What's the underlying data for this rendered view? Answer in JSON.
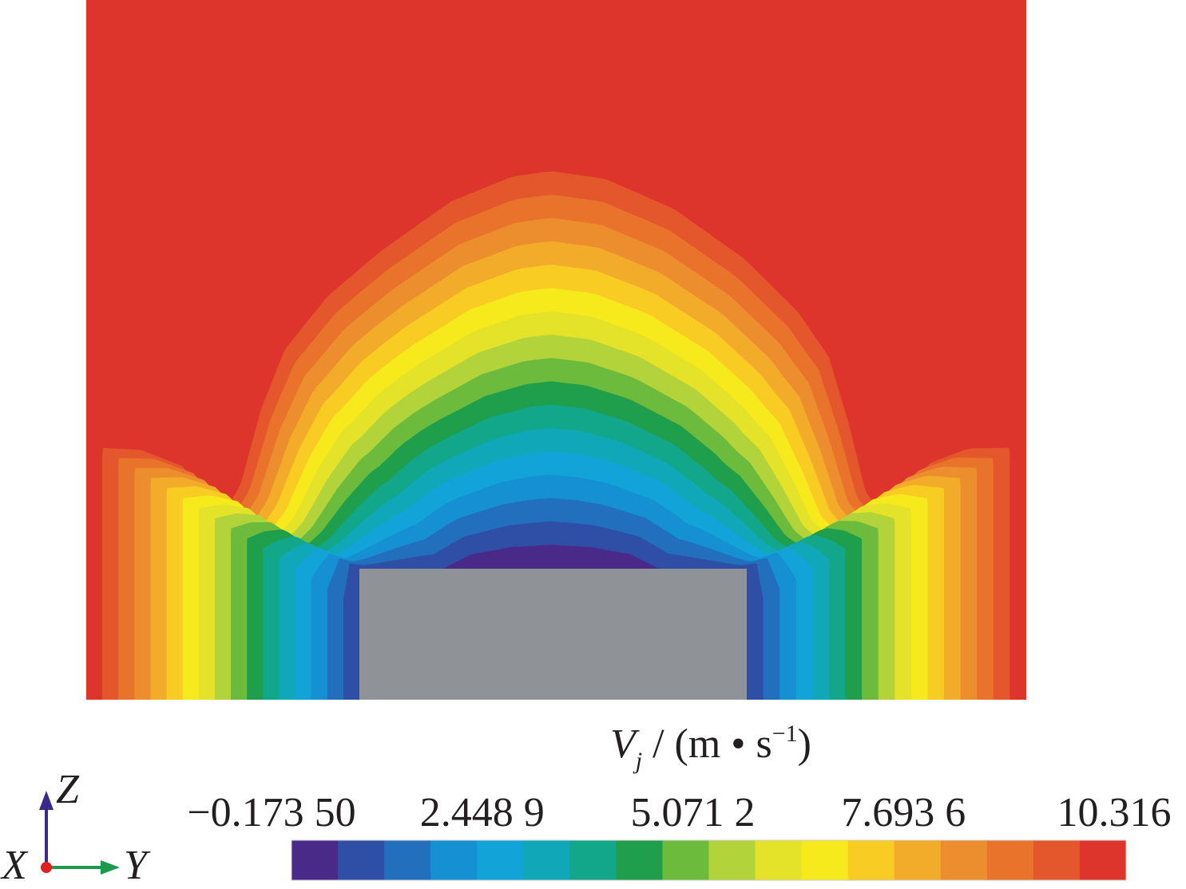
{
  "chart_data": {
    "type": "contour",
    "colorbar": {
      "label": {
        "symbol": "V",
        "subscript": "j",
        "unit": " / (m • s",
        "superscript": "−1",
        "close": ")"
      },
      "lim": [
        -0.1735,
        10.316
      ],
      "ticks": [
        {
          "value": -0.1735,
          "label": "−0.173 50"
        },
        {
          "value": 2.4489,
          "label": "2.448 9"
        },
        {
          "value": 5.0712,
          "label": "5.071 2"
        },
        {
          "value": 7.6936,
          "label": "7.693 6"
        },
        10.316
      ],
      "colors": [
        "#4a2a88",
        "#2f4fa6",
        "#2270bd",
        "#1590d2",
        "#12a4d8",
        "#10a8b8",
        "#12a68a",
        "#1f9e4c",
        "#6cbb3c",
        "#b3d33a",
        "#e4e32a",
        "#f7ea1c",
        "#f8cc22",
        "#f3ac2a",
        "#ec8e2e",
        "#e9732b",
        "#e4562c",
        "#dd352c"
      ]
    },
    "axes_triad": {
      "z": "Z",
      "x": "X",
      "y": "Y"
    }
  }
}
